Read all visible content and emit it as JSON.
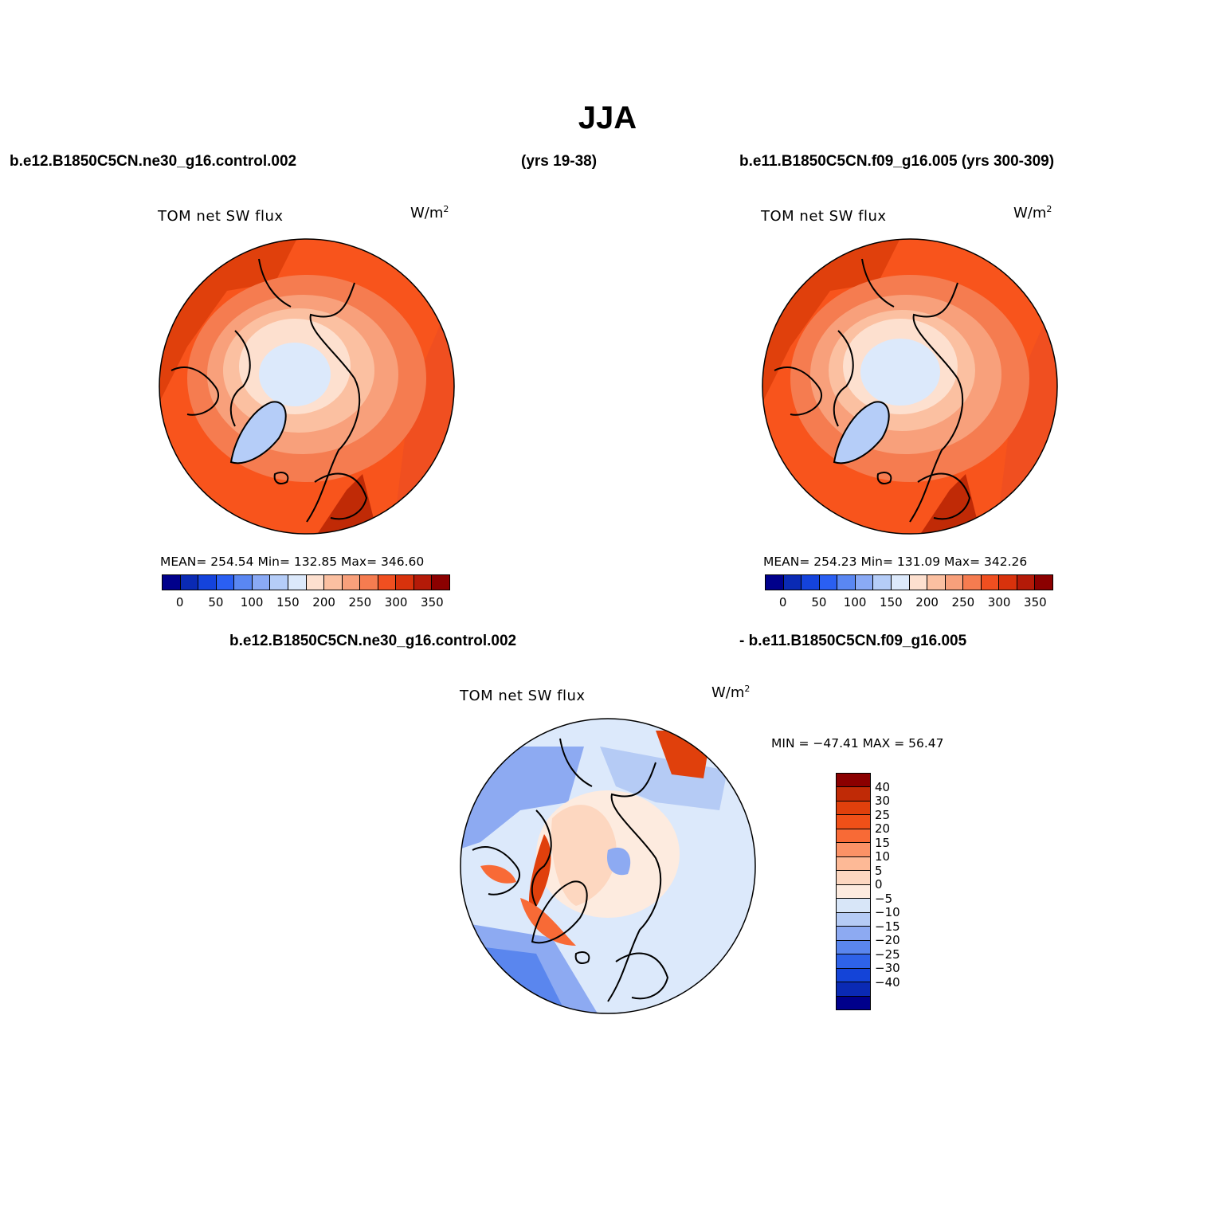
{
  "figure": {
    "title": "JJA",
    "case1_label": "b.e12.B1850C5CN.ne30_g16.control.002",
    "case1_years": "(yrs 19-38)",
    "case2_label": "b.e11.B1850C5CN.f09_g16.005 (yrs 300-309)",
    "diff_label_left": "b.e12.B1850C5CN.ne30_g16.control.002",
    "diff_label_right": "- b.e11.B1850C5CN.f09_g16.005"
  },
  "panels": [
    {
      "title": "TOM net SW flux",
      "units_base": "W/m",
      "units_sup": "2",
      "stats": "MEAN= 254.54   Min= 132.85   Max= 346.60"
    },
    {
      "title": "TOM net SW flux",
      "units_base": "W/m",
      "units_sup": "2",
      "stats": "MEAN= 254.23   Min= 131.09   Max= 342.26"
    },
    {
      "title": "TOM net SW flux",
      "units_base": "W/m",
      "units_sup": "2",
      "stats": "MIN = −47.41  MAX =   56.47"
    }
  ],
  "colorbar_abs": {
    "colors": [
      "#00008b",
      "#0a2ab4",
      "#1443dc",
      "#2a5ff2",
      "#5a87f2",
      "#8aaaf5",
      "#b5cdf8",
      "#dce9fb",
      "#fde0cf",
      "#fbc0a1",
      "#f8a07b",
      "#f57c50",
      "#f04f20",
      "#d8320c",
      "#b41a08",
      "#8b0000"
    ],
    "labels": [
      "0",
      "50",
      "100",
      "150",
      "200",
      "250",
      "300",
      "350"
    ]
  },
  "colorbar_diff": {
    "colors": [
      "#8b0000",
      "#c02a06",
      "#e0400c",
      "#f05018",
      "#f86a36",
      "#fb9266",
      "#fdb996",
      "#fdd7c0",
      "#fdebdf",
      "#d8e6f8",
      "#b5cbf5",
      "#8daaf2",
      "#5a86ee",
      "#2e62e8",
      "#1444d8",
      "#0a2ab4",
      "#00008b"
    ],
    "labels": [
      "40",
      "30",
      "25",
      "20",
      "15",
      "10",
      "5",
      "0",
      "−5",
      "−10",
      "−15",
      "−20",
      "−25",
      "−30",
      "−40"
    ]
  },
  "map_colors": {
    "ocean_warm": "#f8541c",
    "ocean_deep": "#e0400c",
    "mid": "#f57c50",
    "light": "#f8a07b",
    "pale": "#fde0cf",
    "ice": "#dce9fb",
    "greenland": "#b5cdf8",
    "coast": "#000000"
  }
}
